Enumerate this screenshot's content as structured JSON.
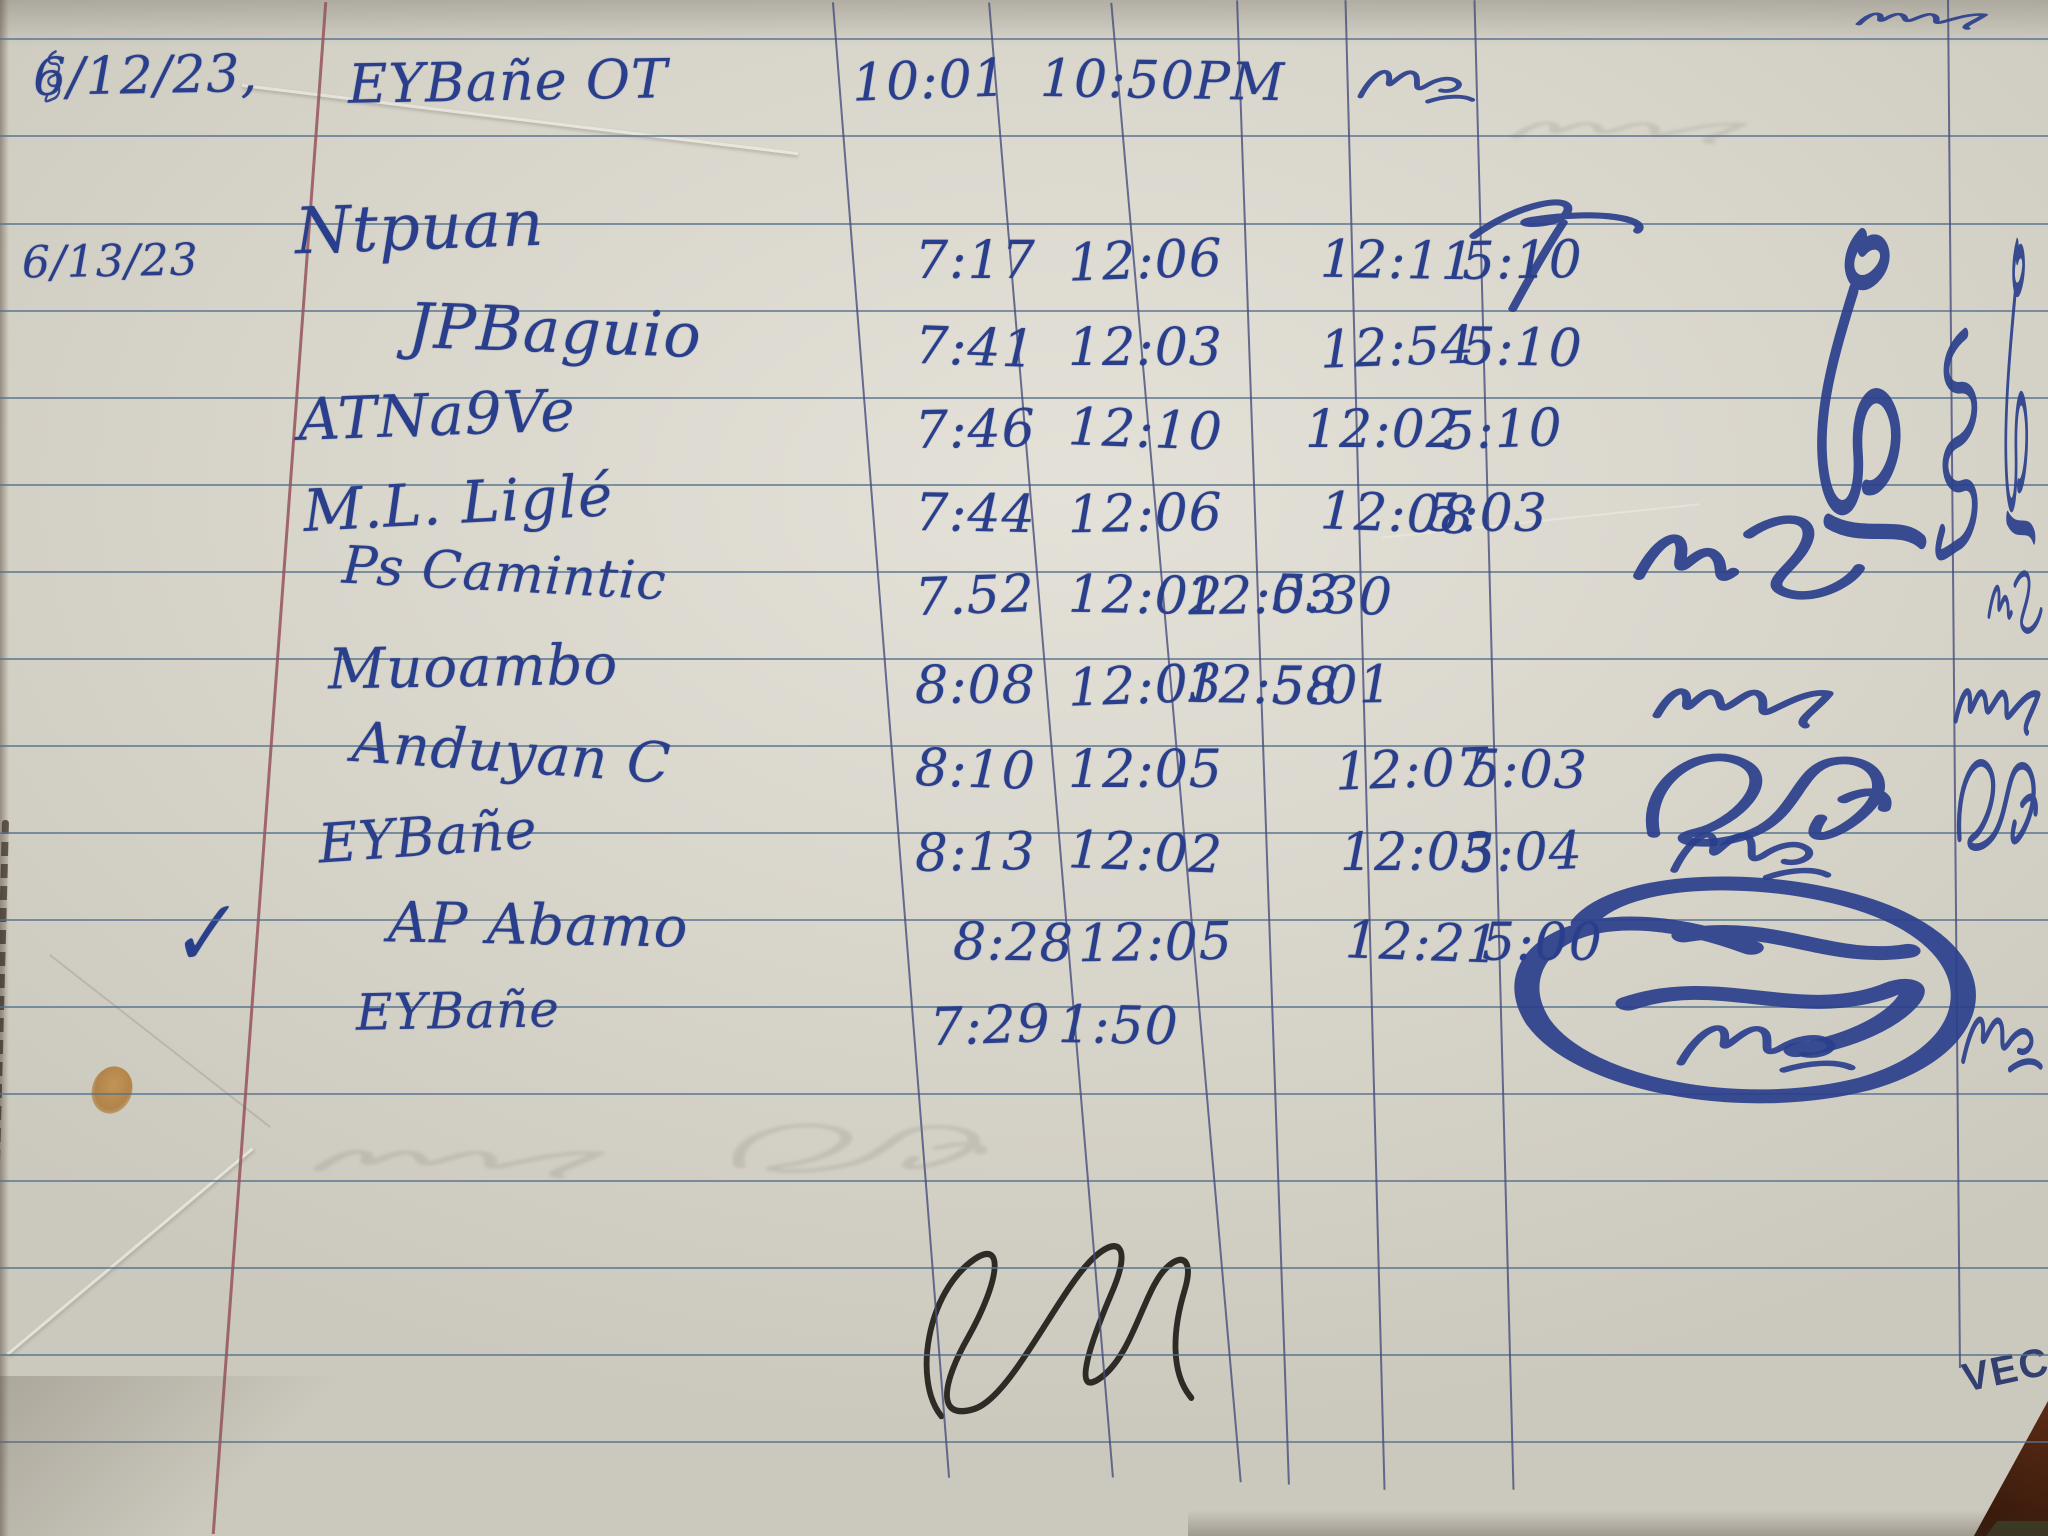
{
  "document": {
    "kind": "handwritten attendance logbook page",
    "brand_label": "VEC",
    "check_mark": "✓"
  },
  "palette": {
    "ink_blue": "#2a3f8c",
    "pen_black": "#2e2b26",
    "paper": "#d8d5cb",
    "rule_line": "#54728c",
    "column_line": "#4b5284",
    "margin_line": "#95535c",
    "table_corner": "#44200f"
  },
  "entries": [
    {
      "date": "6/12/23,",
      "name": "EYBañe OT",
      "times": [
        "10:01",
        "10:50PM",
        "",
        ""
      ],
      "signature": "scrawl"
    },
    {
      "date": "6/13/23",
      "name": "Ntpuan",
      "times": [
        "7:17",
        "12:06",
        "12:11",
        "5:10"
      ],
      "signature": "flourish"
    },
    {
      "date": "",
      "name": "JPBaguio",
      "times": [
        "7:41",
        "12:03",
        "12:54",
        "5:10"
      ],
      "signature": "tall scrawl"
    },
    {
      "date": "",
      "name": "ATNa9Ve",
      "times": [
        "7:46",
        "12:10",
        "12:02",
        "5:10"
      ],
      "signature": "s-curve"
    },
    {
      "date": "",
      "name": "M.L. Liglé",
      "times": [
        "7:44",
        "12:06",
        "12:08",
        "5:03"
      ],
      "signature": "initials"
    },
    {
      "date": "",
      "name": "Ps Camintic",
      "times": [
        "7.52",
        "12:02",
        "12:03",
        "5:30"
      ],
      "signature": "initials"
    },
    {
      "date": "",
      "name": "Muoambo",
      "times": [
        "8:08",
        "12:03",
        "12:58",
        "5:01"
      ],
      "signature": "mlz scrawl"
    },
    {
      "date": "",
      "name": "Anduyan C",
      "times": [
        "8:10",
        "12:05",
        "12:07",
        "5:03"
      ],
      "signature": "loops"
    },
    {
      "date": "",
      "name": "EYBañe",
      "times": [
        "8:13",
        "12:02",
        "12:03",
        "5:04"
      ],
      "signature": "jm scrawl"
    },
    {
      "date": "",
      "name": "AP Abamo",
      "times": [
        "8:28",
        "12:05",
        "12:21",
        "5:00"
      ],
      "signature": "circled scrawl",
      "checked": true
    },
    {
      "date": "",
      "name": "EYBañe",
      "times": [
        "7:29",
        "1:50",
        "",
        ""
      ],
      "signature": "jm scrawl"
    }
  ],
  "signature_marks": [
    {
      "row": 0,
      "area": "date-overwrite",
      "style": "scurve"
    },
    {
      "row": 0,
      "area": "column",
      "style": "jm"
    },
    {
      "row": 1,
      "area": "column",
      "style": "flourish"
    },
    {
      "row": 2,
      "area": "column",
      "style": "tall"
    },
    {
      "row": 2,
      "area": "edge",
      "style": "tall"
    },
    {
      "row": 3,
      "area": "column",
      "style": "scurve"
    },
    {
      "row": 4,
      "area": "column",
      "style": "initials"
    },
    {
      "row": 5,
      "area": "edge",
      "style": "initials"
    },
    {
      "row": 6,
      "area": "column",
      "style": "mlz"
    },
    {
      "row": 6,
      "area": "edge",
      "style": "mlz"
    },
    {
      "row": 7,
      "area": "column",
      "style": "loops"
    },
    {
      "row": 7,
      "area": "edge",
      "style": "loops"
    },
    {
      "row": 8,
      "area": "column",
      "style": "jm"
    },
    {
      "row": 9,
      "area": "column",
      "style": "circle"
    },
    {
      "row": 10,
      "area": "column",
      "style": "jm"
    },
    {
      "row": 10,
      "area": "edge",
      "style": "jm"
    },
    {
      "row": -1,
      "area": "top-edge",
      "style": "mlz"
    }
  ]
}
